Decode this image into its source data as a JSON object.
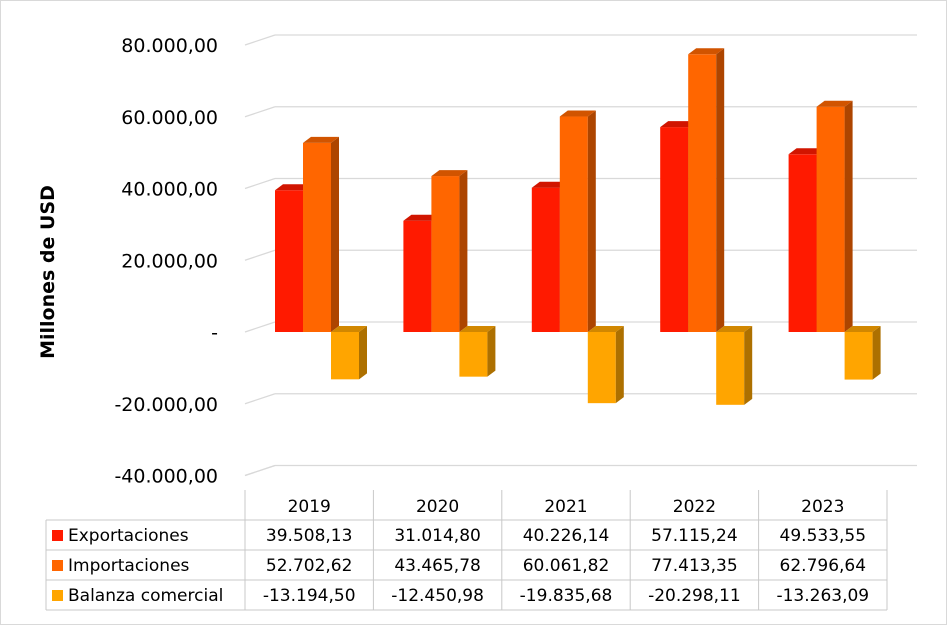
{
  "chart_data": {
    "type": "bar",
    "categories": [
      "2019",
      "2020",
      "2021",
      "2022",
      "2023"
    ],
    "series": [
      {
        "name": "Exportaciones",
        "values": [
          39508.13,
          31014.8,
          40226.14,
          57115.24,
          49533.55
        ],
        "color": "#ff1a00",
        "labels": [
          "39.508,13",
          "31.014,80",
          "40.226,14",
          "57.115,24",
          "49.533,55"
        ]
      },
      {
        "name": "Importaciones",
        "values": [
          52702.62,
          43465.78,
          60061.82,
          77413.35,
          62796.64
        ],
        "color": "#ff6600",
        "labels": [
          "52.702,62",
          "43.465,78",
          "60.061,82",
          "77.413,35",
          "62.796,64"
        ]
      },
      {
        "name": "Balanza comercial",
        "values": [
          -13194.5,
          -12450.98,
          -19835.68,
          -20298.11,
          -13263.09
        ],
        "color": "#ffa500",
        "labels": [
          "-13.194,50",
          "-12.450,98",
          "-19.835,68",
          "-20.298,11",
          "-13.263,09"
        ]
      }
    ],
    "ylabel": "Millones de USD",
    "ylim": [
      -40000,
      80000
    ],
    "yticks": [
      80000,
      60000,
      40000,
      20000,
      0,
      -20000,
      -40000
    ],
    "ytick_labels": [
      "80.000,00",
      "60.000,00",
      "40.000,00",
      "20.000,00",
      "-",
      "-20.000,00",
      "-40.000,00"
    ],
    "grid": true,
    "legend": "data-table"
  }
}
